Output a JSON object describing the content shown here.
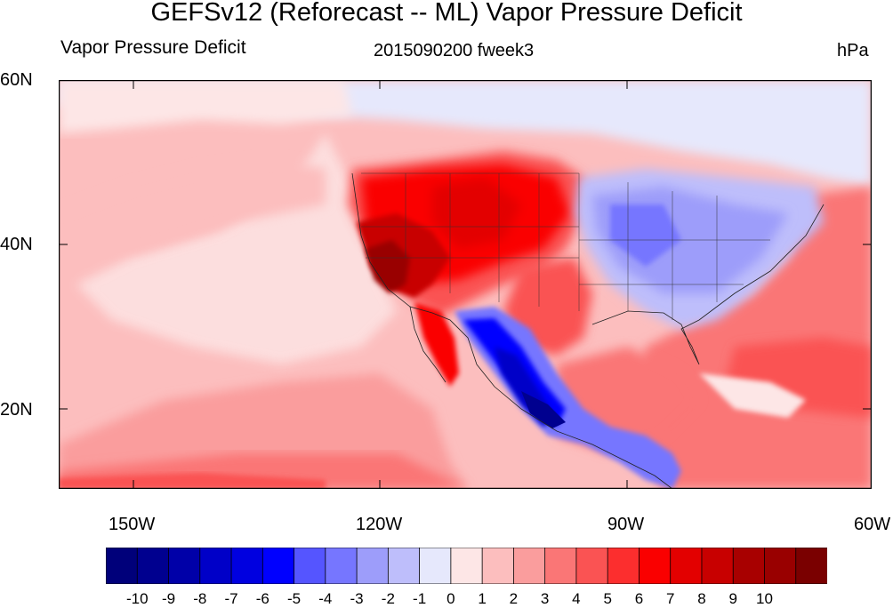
{
  "title": "GEFSv12 (Reforecast -- ML) Vapor Pressure Deficit",
  "left_label": "Vapor Pressure Deficit",
  "center_label": "2015090200 fweek3",
  "right_label": "hPa",
  "lat_ticks": [
    "60N",
    "40N",
    "20N"
  ],
  "lon_ticks": [
    "150W",
    "120W",
    "90W",
    "60W"
  ],
  "map": {
    "region": "North America / Eastern Pacific",
    "lat_range": [
      10,
      60
    ],
    "lon_range": [
      -159,
      -60
    ],
    "colors": {
      "ocean_base": "#fcb0b0",
      "pacific_near_zero": "#fde6e6",
      "north_near_zero": "#e6e8fc",
      "west_us_high": "#e30000",
      "west_us_peak": "#990000",
      "east_us_low": "#9d9dfa",
      "mexico_low": "#0000c8"
    }
  },
  "colorbar": {
    "labels": [
      "-10",
      "-9",
      "-8",
      "-7",
      "-6",
      "-5",
      "-4",
      "-3",
      "-2",
      "-1",
      "0",
      "1",
      "2",
      "3",
      "4",
      "5",
      "6",
      "7",
      "8",
      "9",
      "10"
    ],
    "colors": [
      "#00007a",
      "#00008f",
      "#0000a8",
      "#0000c8",
      "#0000e0",
      "#0000ff",
      "#5555ff",
      "#7676ff",
      "#9d9dfa",
      "#bebefb",
      "#e6e8fc",
      "#fde6e6",
      "#fcbebe",
      "#fa9d9d",
      "#fa7676",
      "#fa5353",
      "#fc2e2e",
      "#fa0000",
      "#e30000",
      "#c80000",
      "#a80000",
      "#990000",
      "#7a0000"
    ]
  }
}
